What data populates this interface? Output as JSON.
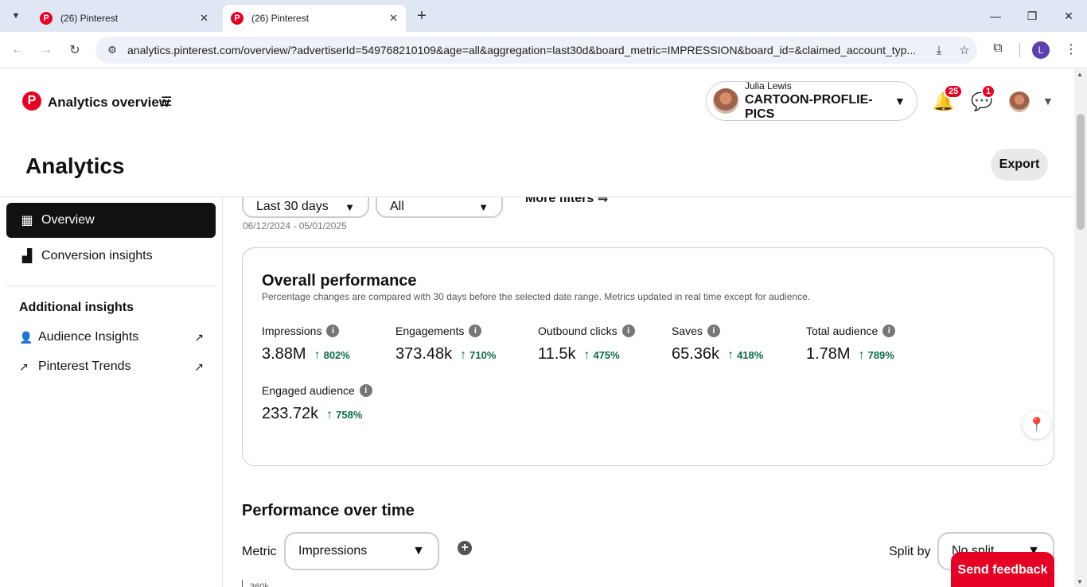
{
  "browser": {
    "tabs": [
      {
        "title": "(26) Pinterest",
        "favicon": "P"
      },
      {
        "title": "(26) Pinterest",
        "favicon": "P"
      }
    ],
    "url": "analytics.pinterest.com/overview/?advertiserId=549768210109&age=all&aggregation=last30d&board_metric=IMPRESSION&board_id=&claimed_account_typ...",
    "profile_initial": "L"
  },
  "header": {
    "brand_title": "Analytics overview",
    "account_user": "Julia Lewis",
    "account_name": "CARTOON-PROFLIE-PICS",
    "notifications_count": "25",
    "messages_count": "1"
  },
  "page": {
    "title": "Analytics",
    "export_label": "Export"
  },
  "sidebar": {
    "items": [
      {
        "label": "Overview"
      },
      {
        "label": "Conversion insights"
      }
    ],
    "additional_heading": "Additional insights",
    "links": [
      {
        "label": "Audience Insights"
      },
      {
        "label": "Pinterest Trends"
      }
    ]
  },
  "filters": {
    "date_value": "Last 30 days",
    "type_value": "All",
    "more_filters": "More filters",
    "date_range": "06/12/2024 - 05/01/2025"
  },
  "overall": {
    "title": "Overall performance",
    "subtitle": "Percentage changes are compared with 30 days before the selected date range. Metrics updated in real time except for audience.",
    "metrics": [
      {
        "label": "Impressions",
        "value": "3.88M",
        "change": "802%"
      },
      {
        "label": "Engagements",
        "value": "373.48k",
        "change": "710%"
      },
      {
        "label": "Outbound clicks",
        "value": "11.5k",
        "change": "475%"
      },
      {
        "label": "Saves",
        "value": "65.36k",
        "change": "418%"
      },
      {
        "label": "Total audience",
        "value": "1.78M",
        "change": "789%"
      },
      {
        "label": "Engaged audience",
        "value": "233.72k",
        "change": "758%"
      }
    ]
  },
  "performance_over_time": {
    "title": "Performance over time",
    "metric_label": "Metric",
    "metric_value": "Impressions",
    "split_label": "Split by",
    "split_value": "No split",
    "axis_top": "360k"
  },
  "feedback_label": "Send feedback",
  "colors": {
    "brand": "#e60023",
    "positive": "#0a6b43"
  }
}
